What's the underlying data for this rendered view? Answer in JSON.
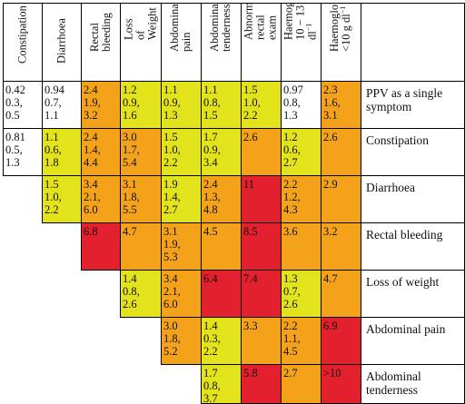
{
  "colors": {
    "yellow": "#e3e31c",
    "orange": "#f4a21a",
    "red": "#e3202e",
    "white": "#ffffff"
  },
  "headers": [
    "Constipation",
    "Diarrhoea",
    "Rectal\nbleeding",
    "Loss of\nWeight",
    "Abdominal\npain",
    "Abdominal\ntenderness",
    "Abnormal\nrectal exam",
    "Haemoglobin\n10 − 13 g dl⁻¹",
    "Haemoglobin\n<10 g dl⁻¹"
  ],
  "rows": [
    {
      "label": "PPV as a single\nsymptom",
      "cells": [
        [
          "0.42\n0.3,\n0.5",
          "w"
        ],
        [
          "0.94\n0.7,\n1.1",
          "w"
        ],
        [
          "2.4\n1.9,\n3.2",
          "o"
        ],
        [
          "1.2\n0.9,\n1.6",
          "y"
        ],
        [
          "1.1\n0.9,\n1.3",
          "y"
        ],
        [
          "1.1\n0.8,\n1.5",
          "y"
        ],
        [
          "1.5\n1.0,\n2.2",
          "y"
        ],
        [
          "0.97\n0.8,\n1.3",
          "w"
        ],
        [
          "2.3\n1.6,\n3.1",
          "o"
        ]
      ]
    },
    {
      "label": "Constipation",
      "cells": [
        [
          "0.81\n0.5,\n1.3",
          "w"
        ],
        [
          "1.1\n0.6,\n1.8",
          "y"
        ],
        [
          "2.4\n1.4,\n4.4",
          "o"
        ],
        [
          "3.0\n1.7,\n5.4",
          "o"
        ],
        [
          "1.5\n1.0,\n2.2",
          "y"
        ],
        [
          "1.7\n0.9,\n3.4",
          "y"
        ],
        [
          "2.6",
          "o"
        ],
        [
          "1.2\n0.6,\n2.7",
          "y"
        ],
        [
          "2.6",
          "o"
        ]
      ]
    },
    {
      "label": "Diarrhoea",
      "cells": [
        null,
        [
          "1.5\n1.0,\n2.2",
          "y"
        ],
        [
          "3.4\n2.1,\n6.0",
          "o"
        ],
        [
          "3.1\n1.8,\n5.5",
          "o"
        ],
        [
          "1.9\n1.4,\n2.7",
          "y"
        ],
        [
          "2.4\n1.3,\n4.8",
          "o"
        ],
        [
          "11",
          "r"
        ],
        [
          "2.2\n1.2,\n4.3",
          "o"
        ],
        [
          "2.9",
          "o"
        ]
      ]
    },
    {
      "label": "Rectal bleeding",
      "cells": [
        null,
        null,
        [
          "6.8",
          "r"
        ],
        [
          "4.7",
          "o"
        ],
        [
          "3.1\n1.9,\n5.3",
          "o"
        ],
        [
          "4.5",
          "o"
        ],
        [
          "8.5",
          "r"
        ],
        [
          "3.6",
          "o"
        ],
        [
          "3.2",
          "o"
        ]
      ]
    },
    {
      "label": "Loss of weight",
      "cells": [
        null,
        null,
        null,
        [
          "1.4\n0.8,\n2.6",
          "y"
        ],
        [
          "3.4\n2.1,\n6.0",
          "o"
        ],
        [
          "6.4",
          "r"
        ],
        [
          "7.4",
          "r"
        ],
        [
          "1.3\n0.7,\n2.6",
          "y"
        ],
        [
          "4.7",
          "o"
        ]
      ]
    },
    {
      "label": "Abdominal pain",
      "cells": [
        null,
        null,
        null,
        null,
        [
          "3.0\n1.8,\n5.2",
          "o"
        ],
        [
          "1.4\n0.3,\n2.2",
          "y"
        ],
        [
          "3.3",
          "o"
        ],
        [
          "2.2\n1.1,\n4.5",
          "o"
        ],
        [
          "6.9",
          "r"
        ]
      ]
    },
    {
      "label": "Abdominal\ntenderness",
      "cells": [
        null,
        null,
        null,
        null,
        null,
        [
          "1.7\n0.8,\n3.7",
          "y"
        ],
        [
          "5.8",
          "r"
        ],
        [
          "2.7",
          "o"
        ],
        [
          ">10",
          "r"
        ]
      ]
    }
  ]
}
